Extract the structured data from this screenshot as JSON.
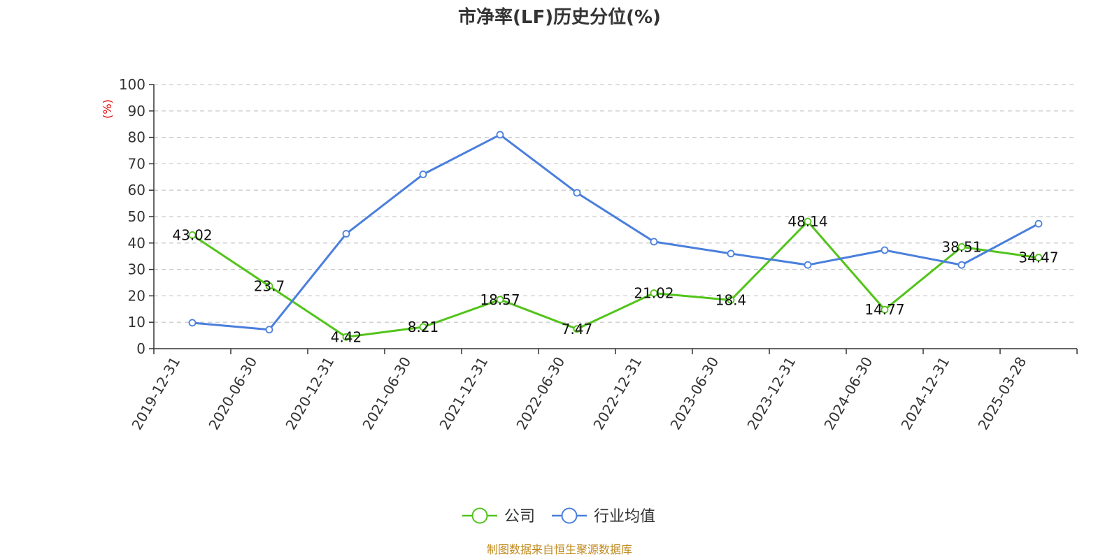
{
  "chart_data": {
    "type": "line",
    "title": "市净率(LF)历史分位(%)",
    "y_unit": "(%)",
    "ylim": [
      0,
      100
    ],
    "y_ticks": [
      0,
      10,
      20,
      30,
      40,
      50,
      60,
      70,
      80,
      90,
      100
    ],
    "grid": true,
    "legend_position": "bottom-center",
    "categories": [
      "2019-12-31",
      "2020-06-30",
      "2020-12-31",
      "2021-06-30",
      "2021-12-31",
      "2022-06-30",
      "2022-12-31",
      "2023-06-30",
      "2023-12-31",
      "2024-06-30",
      "2024-12-31",
      "2025-03-28"
    ],
    "series": [
      {
        "name": "公司",
        "color": "#52c41a",
        "values": [
          43.02,
          23.7,
          4.42,
          8.21,
          18.57,
          7.47,
          21.02,
          18.4,
          48.14,
          14.77,
          38.51,
          34.47
        ],
        "labels": [
          "43.02",
          "23.7",
          "4.42",
          "8.21",
          "18.57",
          "7.47",
          "21.02",
          "18.4",
          "48.14",
          "14.77",
          "38.51",
          "34.47"
        ]
      },
      {
        "name": "行业均值",
        "color": "#4a7fdc",
        "values": [
          9.8,
          7.2,
          43.5,
          66.0,
          81.0,
          59.0,
          40.5,
          36.0,
          31.7,
          37.3,
          31.7,
          47.3
        ]
      }
    ]
  },
  "source_note": "制图数据来自恒生聚源数据库"
}
